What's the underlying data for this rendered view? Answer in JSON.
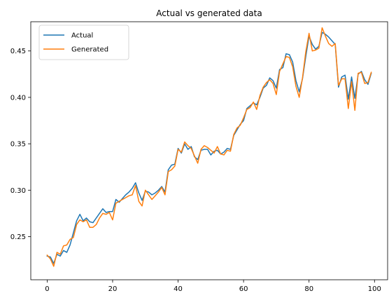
{
  "chart_data": {
    "type": "line",
    "title": "Actual vs generated data",
    "xlabel": "",
    "ylabel": "",
    "xlim": [
      -5,
      104
    ],
    "ylim": [
      0.2035,
      0.4815
    ],
    "xticks": [
      0,
      20,
      40,
      60,
      80,
      100
    ],
    "xtick_labels": [
      "0",
      "20",
      "40",
      "60",
      "80",
      "100"
    ],
    "yticks": [
      0.25,
      0.3,
      0.35,
      0.4,
      0.45
    ],
    "ytick_labels": [
      "0.25",
      "0.30",
      "0.35",
      "0.40",
      "0.45"
    ],
    "grid": false,
    "legend_position": "top-left",
    "x": [
      0,
      1,
      2,
      3,
      4,
      5,
      6,
      7,
      8,
      9,
      10,
      11,
      12,
      13,
      14,
      15,
      16,
      17,
      18,
      19,
      20,
      21,
      22,
      23,
      24,
      25,
      26,
      27,
      28,
      29,
      30,
      31,
      32,
      33,
      34,
      35,
      36,
      37,
      38,
      39,
      40,
      41,
      42,
      43,
      44,
      45,
      46,
      47,
      48,
      49,
      50,
      51,
      52,
      53,
      54,
      55,
      56,
      57,
      58,
      59,
      60,
      61,
      62,
      63,
      64,
      65,
      66,
      67,
      68,
      69,
      70,
      71,
      72,
      73,
      74,
      75,
      76,
      77,
      78,
      79,
      80,
      81,
      82,
      83,
      84,
      85,
      86,
      87,
      88,
      89,
      90,
      91,
      92,
      93,
      94,
      95,
      96,
      97,
      98,
      99
    ],
    "series": [
      {
        "name": "Actual",
        "color": "#1f77b4",
        "values": [
          0.229,
          0.228,
          0.221,
          0.231,
          0.229,
          0.235,
          0.233,
          0.241,
          0.254,
          0.267,
          0.274,
          0.267,
          0.27,
          0.266,
          0.265,
          0.27,
          0.275,
          0.28,
          0.276,
          0.277,
          0.277,
          0.29,
          0.287,
          0.291,
          0.295,
          0.298,
          0.302,
          0.308,
          0.297,
          0.289,
          0.299,
          0.298,
          0.295,
          0.297,
          0.3,
          0.304,
          0.298,
          0.322,
          0.327,
          0.328,
          0.345,
          0.34,
          0.35,
          0.344,
          0.347,
          0.336,
          0.333,
          0.343,
          0.344,
          0.344,
          0.338,
          0.342,
          0.343,
          0.339,
          0.341,
          0.345,
          0.344,
          0.359,
          0.365,
          0.371,
          0.375,
          0.388,
          0.391,
          0.394,
          0.392,
          0.4,
          0.41,
          0.413,
          0.421,
          0.418,
          0.41,
          0.43,
          0.432,
          0.447,
          0.446,
          0.438,
          0.418,
          0.406,
          0.42,
          0.444,
          0.466,
          0.457,
          0.452,
          0.455,
          0.47,
          0.468,
          0.465,
          0.461,
          0.457,
          0.411,
          0.422,
          0.424,
          0.398,
          0.422,
          0.399,
          0.425,
          0.428,
          0.419,
          0.414,
          0.426
        ]
      },
      {
        "name": "Generated",
        "color": "#ff7f0e",
        "values": [
          0.23,
          0.226,
          0.218,
          0.233,
          0.231,
          0.24,
          0.241,
          0.247,
          0.249,
          0.263,
          0.268,
          0.266,
          0.268,
          0.26,
          0.26,
          0.263,
          0.27,
          0.275,
          0.274,
          0.276,
          0.268,
          0.286,
          0.288,
          0.29,
          0.292,
          0.294,
          0.295,
          0.305,
          0.288,
          0.283,
          0.3,
          0.295,
          0.29,
          0.294,
          0.298,
          0.303,
          0.295,
          0.32,
          0.322,
          0.326,
          0.344,
          0.341,
          0.352,
          0.348,
          0.345,
          0.337,
          0.329,
          0.344,
          0.348,
          0.346,
          0.343,
          0.34,
          0.347,
          0.339,
          0.338,
          0.343,
          0.342,
          0.36,
          0.367,
          0.37,
          0.378,
          0.387,
          0.389,
          0.395,
          0.387,
          0.402,
          0.411,
          0.416,
          0.419,
          0.415,
          0.403,
          0.428,
          0.436,
          0.444,
          0.443,
          0.433,
          0.412,
          0.4,
          0.421,
          0.449,
          0.469,
          0.45,
          0.451,
          0.453,
          0.475,
          0.466,
          0.458,
          0.455,
          0.458,
          0.413,
          0.42,
          0.42,
          0.388,
          0.417,
          0.386,
          0.426,
          0.427,
          0.415,
          0.416,
          0.427
        ]
      }
    ]
  }
}
